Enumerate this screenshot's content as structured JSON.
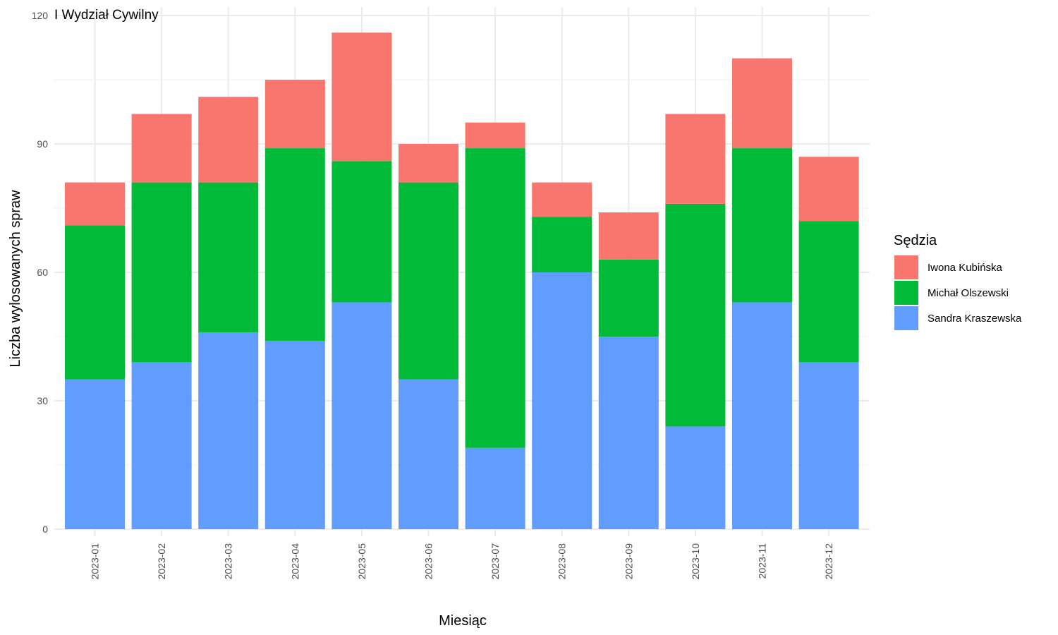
{
  "chart_data": {
    "type": "bar",
    "stacked": true,
    "title": "I Wydział Cywilny",
    "xlabel": "Miesiąc",
    "ylabel": "Liczba wylosowanych spraw",
    "ylim": [
      0,
      120
    ],
    "yticks": [
      0,
      30,
      60,
      90,
      120
    ],
    "grid": true,
    "legend_position": "right",
    "legend_title": "Sędzia",
    "categories": [
      "2023-01",
      "2023-02",
      "2023-03",
      "2023-04",
      "2023-05",
      "2023-06",
      "2023-07",
      "2023-08",
      "2023-09",
      "2023-10",
      "2023-11",
      "2023-12"
    ],
    "series": [
      {
        "name": "Sandra Kraszewska",
        "color": "#619CFF",
        "values": [
          35,
          39,
          46,
          44,
          53,
          35,
          19,
          60,
          45,
          24,
          53,
          39
        ]
      },
      {
        "name": "Michał Olszewski",
        "color": "#00BA38",
        "values": [
          36,
          42,
          35,
          45,
          33,
          46,
          70,
          13,
          18,
          52,
          36,
          33
        ]
      },
      {
        "name": "Iwona Kubińska",
        "color": "#F8766D",
        "values": [
          10,
          16,
          20,
          16,
          30,
          9,
          6,
          8,
          11,
          21,
          21,
          15
        ]
      }
    ],
    "legend_order": [
      "Iwona Kubińska",
      "Michał Olszewski",
      "Sandra Kraszewska"
    ]
  }
}
